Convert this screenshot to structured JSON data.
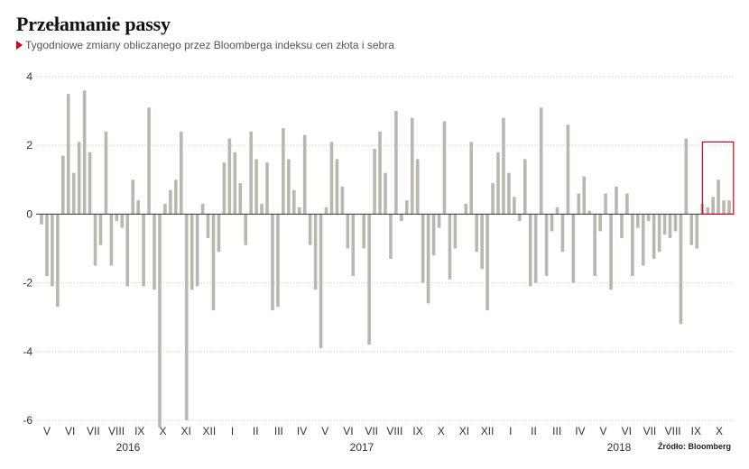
{
  "title": "Przełamanie passy",
  "subtitle": "Tygodniowe zmiany obliczanego przez Bloomberga indeksu cen złota i sebra",
  "source": "Źródło: Bloomberg",
  "colors": {
    "bar": "#b9b8ae",
    "grid": "#c8c8c8",
    "zero_line": "#333333",
    "highlight_box": "#d6001c",
    "title_marker": "#d6001c"
  },
  "chart_data": {
    "type": "bar",
    "ylim": [
      -6,
      4
    ],
    "yticks": [
      4,
      2,
      0,
      -2,
      -4,
      -6
    ],
    "grid": "horizontal dotted",
    "month_labels": [
      "V",
      "VI",
      "VII",
      "VIII",
      "IX",
      "X",
      "XI",
      "XII",
      "I",
      "II",
      "III",
      "IV",
      "V",
      "VI",
      "VII",
      "VIII",
      "IX",
      "X",
      "XI",
      "XII",
      "I",
      "II",
      "III",
      "IV",
      "V",
      "VI",
      "VII",
      "VIII",
      "IX",
      "X"
    ],
    "year_labels": [
      "2016",
      "2017",
      "2018"
    ],
    "values": [
      -0.3,
      -1.8,
      -2.1,
      -2.7,
      1.7,
      3.5,
      1.2,
      2.1,
      3.6,
      1.8,
      -1.5,
      -0.9,
      2.4,
      -1.5,
      -0.2,
      -0.4,
      -2.1,
      1.0,
      0.4,
      -2.1,
      3.1,
      -2.2,
      -6.2,
      0.3,
      0.7,
      1.0,
      2.4,
      -6.0,
      -2.2,
      -2.1,
      0.3,
      -0.7,
      -2.8,
      -1.1,
      1.5,
      2.2,
      1.8,
      0.9,
      -0.9,
      2.4,
      1.6,
      0.3,
      1.5,
      -2.8,
      -2.7,
      2.5,
      1.6,
      0.7,
      0.2,
      2.3,
      -0.9,
      -2.2,
      -3.9,
      0.2,
      2.1,
      1.6,
      0.8,
      -1.0,
      -1.8,
      0.0,
      -1.0,
      -3.8,
      1.9,
      2.4,
      1.2,
      -1.3,
      3.0,
      -0.2,
      0.4,
      2.8,
      1.6,
      -2.0,
      -2.6,
      -1.2,
      -0.4,
      2.7,
      -1.9,
      -1.0,
      0.0,
      0.3,
      2.1,
      -1.1,
      -1.6,
      -2.8,
      0.9,
      1.8,
      2.8,
      1.2,
      0.5,
      -0.2,
      1.6,
      -2.1,
      -2.0,
      3.1,
      -1.8,
      -0.5,
      0.2,
      -1.1,
      2.6,
      -2.0,
      0.6,
      1.1,
      0.1,
      -1.8,
      -0.5,
      0.6,
      -2.2,
      0.8,
      -0.7,
      0.6,
      -1.8,
      -0.4,
      -1.5,
      -0.2,
      -1.3,
      -1.1,
      -0.6,
      -0.7,
      -0.5,
      -3.2,
      2.2,
      -0.9,
      -1.0,
      0.3,
      0.2,
      0.5,
      1.0,
      0.4,
      0.4
    ],
    "highlight": {
      "from_index": 124,
      "to_index": 128
    }
  }
}
